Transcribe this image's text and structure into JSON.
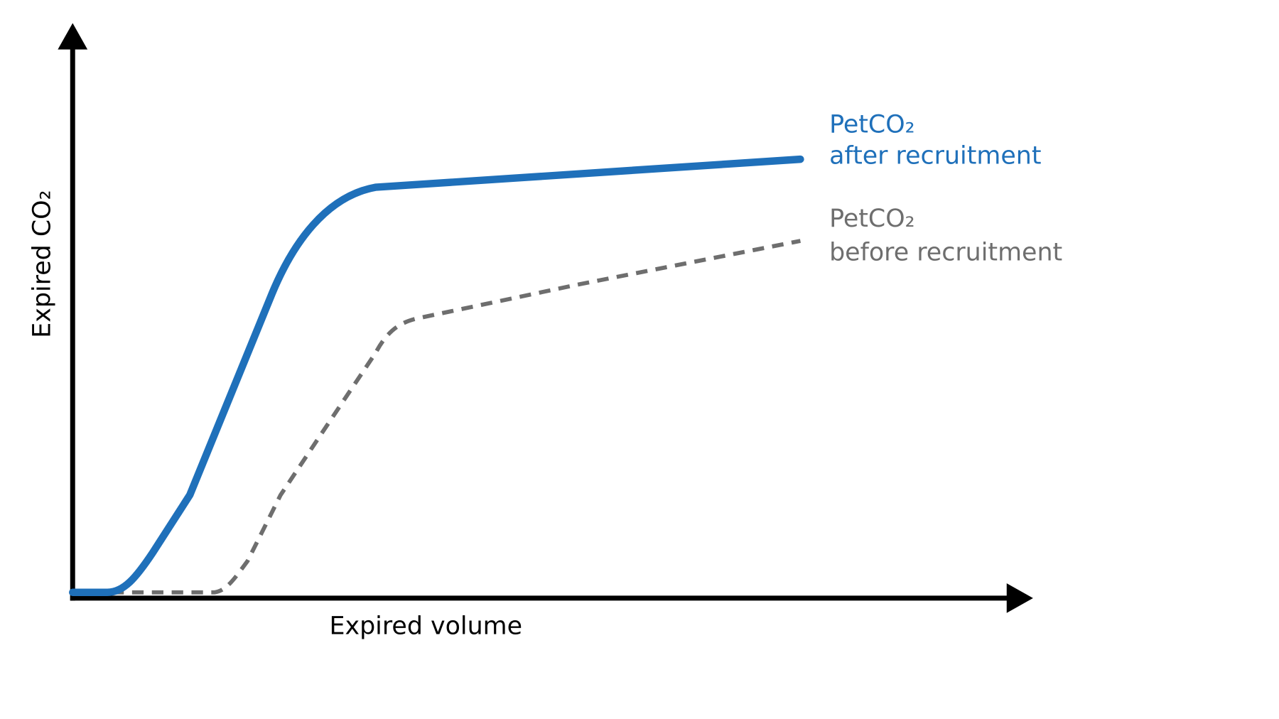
{
  "y_axis": {
    "label": "Expired CO₂"
  },
  "x_axis": {
    "label": "Expired volume"
  },
  "curves": [
    {
      "label_line1": "PetCO₂",
      "label_line2": "after recruitment"
    },
    {
      "label_line1": "PetCO₂",
      "label_line2": "before recruitment"
    }
  ]
}
